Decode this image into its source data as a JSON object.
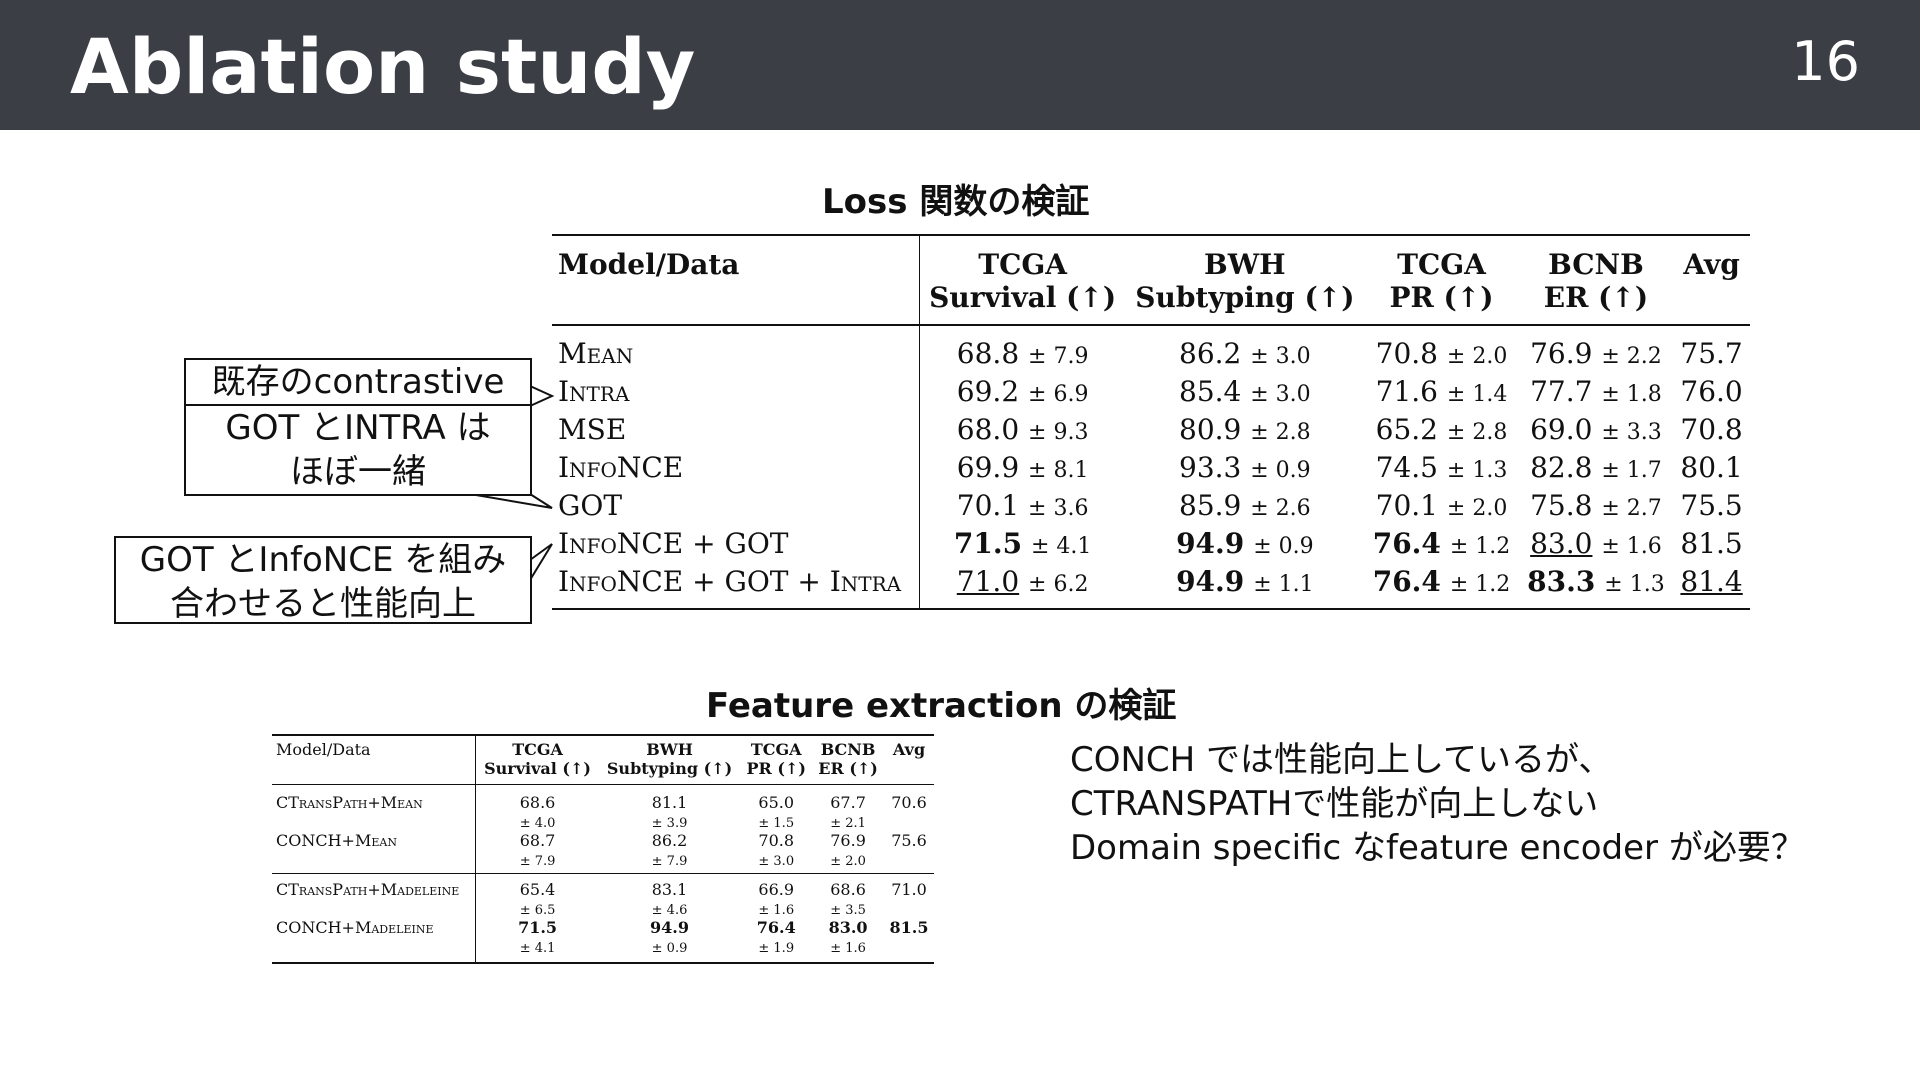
{
  "header": {
    "title": "Ablation study",
    "page_number": "16",
    "background_color": "#3b3e45"
  },
  "loss_section": {
    "title": "Loss 関数の検証",
    "header_model": "Model/Data",
    "columns": [
      {
        "line1": "TCGA",
        "line2": "Survival (↑)"
      },
      {
        "line1": "BWH",
        "line2": "Subtyping (↑)"
      },
      {
        "line1": "TCGA",
        "line2": "PR (↑)"
      },
      {
        "line1": "BCNB",
        "line2": "ER (↑)"
      },
      {
        "line1": "Avg",
        "line2": ""
      }
    ],
    "rows": [
      {
        "model": "Mean",
        "c1": "68.8",
        "c1pm": "± 7.9",
        "c2": "86.2",
        "c2pm": "± 3.0",
        "c3": "70.8",
        "c3pm": "± 2.0",
        "c4": "76.9",
        "c4pm": "± 2.2",
        "avg": "75.7"
      },
      {
        "model": "Intra",
        "c1": "69.2",
        "c1pm": "± 6.9",
        "c2": "85.4",
        "c2pm": "± 3.0",
        "c3": "71.6",
        "c3pm": "± 1.4",
        "c4": "77.7",
        "c4pm": "± 1.8",
        "avg": "76.0"
      },
      {
        "model": "MSE",
        "c1": "68.0",
        "c1pm": "± 9.3",
        "c2": "80.9",
        "c2pm": "± 2.8",
        "c3": "65.2",
        "c3pm": "± 2.8",
        "c4": "69.0",
        "c4pm": "± 3.3",
        "avg": "70.8"
      },
      {
        "model": "InfoNCE",
        "c1": "69.9",
        "c1pm": "± 8.1",
        "c2": "93.3",
        "c2pm": "± 0.9",
        "c3": "74.5",
        "c3pm": "± 1.3",
        "c4": "82.8",
        "c4pm": "± 1.7",
        "avg": "80.1"
      },
      {
        "model": "GOT",
        "c1": "70.1",
        "c1pm": "± 3.6",
        "c2": "85.9",
        "c2pm": "± 2.6",
        "c3": "70.1",
        "c3pm": "± 2.0",
        "c4": "75.8",
        "c4pm": "± 2.7",
        "avg": "75.5"
      },
      {
        "model": "InfoNCE + GOT",
        "c1": "71.5",
        "c1pm": "± 4.1",
        "c2": "94.9",
        "c2pm": "± 0.9",
        "c3": "76.4",
        "c3pm": "± 1.2",
        "c4": "83.0",
        "c4pm": "± 1.6",
        "avg": "81.5"
      },
      {
        "model": "InfoNCE + GOT + Intra",
        "c1": "71.0",
        "c1pm": "± 6.2",
        "c2": "94.9",
        "c2pm": "± 1.1",
        "c3": "76.4",
        "c3pm": "± 1.2",
        "c4": "83.3",
        "c4pm": "± 1.3",
        "avg": "81.4"
      }
    ]
  },
  "callouts": {
    "contrastive": {
      "line1": "既存のcontrastive",
      "line2": "GOT とINTRA は",
      "line3": "ほぼ一緒"
    },
    "combine": {
      "line1": "GOT とInfoNCE を組み",
      "line2": "合わせると性能向上"
    }
  },
  "feature_section": {
    "title": "Feature extraction の検証",
    "header_model": "Model/Data",
    "columns": [
      {
        "line1": "TCGA",
        "line2": "Survival (↑)"
      },
      {
        "line1": "BWH",
        "line2": "Subtyping (↑)"
      },
      {
        "line1": "TCGA",
        "line2": "PR (↑)"
      },
      {
        "line1": "BCNB",
        "line2": "ER (↑)"
      },
      {
        "line1": "Avg",
        "line2": ""
      }
    ],
    "rows": [
      {
        "model": "CTransPath+Mean",
        "c1": "68.6",
        "c1pm": "± 4.0",
        "c2": "81.1",
        "c2pm": "± 3.9",
        "c3": "65.0",
        "c3pm": "± 1.5",
        "c4": "67.7",
        "c4pm": "± 2.1",
        "avg": "70.6"
      },
      {
        "model": "CONCH+Mean",
        "c1": "68.7",
        "c1pm": "± 7.9",
        "c2": "86.2",
        "c2pm": "± 7.9",
        "c3": "70.8",
        "c3pm": "± 3.0",
        "c4": "76.9",
        "c4pm": "± 2.0",
        "avg": "75.6"
      },
      {
        "model": "CTransPath+Madeleine",
        "c1": "65.4",
        "c1pm": "± 6.5",
        "c2": "83.1",
        "c2pm": "± 4.6",
        "c3": "66.9",
        "c3pm": "± 1.6",
        "c4": "68.6",
        "c4pm": "± 3.5",
        "avg": "71.0"
      },
      {
        "model": "CONCH+Madeleine",
        "c1": "71.5",
        "c1pm": "± 4.1",
        "c2": "94.9",
        "c2pm": "± 0.9",
        "c3": "76.4",
        "c3pm": "± 1.9",
        "c4": "83.0",
        "c4pm": "± 1.6",
        "avg": "81.5"
      }
    ]
  },
  "note": {
    "line1": "CONCH では性能向上しているが、",
    "line2": "CTRANSPATHで性能が向上しない",
    "line3": "Domain specific なfeature encoder が必要？"
  }
}
